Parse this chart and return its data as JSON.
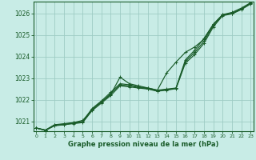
{
  "xlabel": "Graphe pression niveau de la mer (hPa)",
  "background_color": "#c8ece6",
  "grid_color": "#9dccc4",
  "line_color": "#1a5c2a",
  "ylim": [
    1020.55,
    1026.55
  ],
  "xlim": [
    -0.3,
    23.3
  ],
  "yticks": [
    1021,
    1022,
    1023,
    1024,
    1025,
    1026
  ],
  "xticks": [
    0,
    1,
    2,
    3,
    4,
    5,
    6,
    7,
    8,
    9,
    10,
    11,
    12,
    13,
    14,
    15,
    16,
    17,
    18,
    19,
    20,
    21,
    22,
    23
  ],
  "hours": [
    0,
    1,
    2,
    3,
    4,
    5,
    6,
    7,
    8,
    9,
    10,
    11,
    12,
    13,
    14,
    15,
    16,
    17,
    18,
    19,
    20,
    21,
    22,
    23
  ],
  "series": [
    [
      1020.7,
      1020.6,
      1020.85,
      1020.85,
      1020.95,
      1021.05,
      1021.55,
      1021.9,
      1022.25,
      1023.05,
      1022.75,
      1022.65,
      1022.55,
      1022.45,
      1023.25,
      1023.75,
      1024.2,
      1024.45,
      1024.8,
      1025.5,
      1025.95,
      1026.05,
      1026.25,
      1026.5
    ],
    [
      1020.7,
      1020.6,
      1020.85,
      1020.9,
      1020.95,
      1021.0,
      1021.6,
      1021.95,
      1022.35,
      1022.75,
      1022.7,
      1022.6,
      1022.55,
      1022.45,
      1022.5,
      1022.55,
      1023.85,
      1024.3,
      1024.85,
      1025.5,
      1025.95,
      1026.0,
      1026.2,
      1026.48
    ],
    [
      1020.7,
      1020.6,
      1020.8,
      1020.85,
      1020.9,
      1020.95,
      1021.5,
      1021.85,
      1022.2,
      1022.65,
      1022.6,
      1022.55,
      1022.5,
      1022.4,
      1022.45,
      1022.52,
      1023.7,
      1024.1,
      1024.62,
      1025.38,
      1025.9,
      1025.98,
      1026.18,
      1026.44
    ],
    [
      1020.7,
      1020.58,
      1020.82,
      1020.87,
      1020.92,
      1020.98,
      1021.55,
      1021.9,
      1022.28,
      1022.7,
      1022.65,
      1022.58,
      1022.52,
      1022.42,
      1022.47,
      1022.54,
      1023.78,
      1024.2,
      1024.72,
      1025.44,
      1025.92,
      1026.01,
      1026.21,
      1026.46
    ]
  ]
}
